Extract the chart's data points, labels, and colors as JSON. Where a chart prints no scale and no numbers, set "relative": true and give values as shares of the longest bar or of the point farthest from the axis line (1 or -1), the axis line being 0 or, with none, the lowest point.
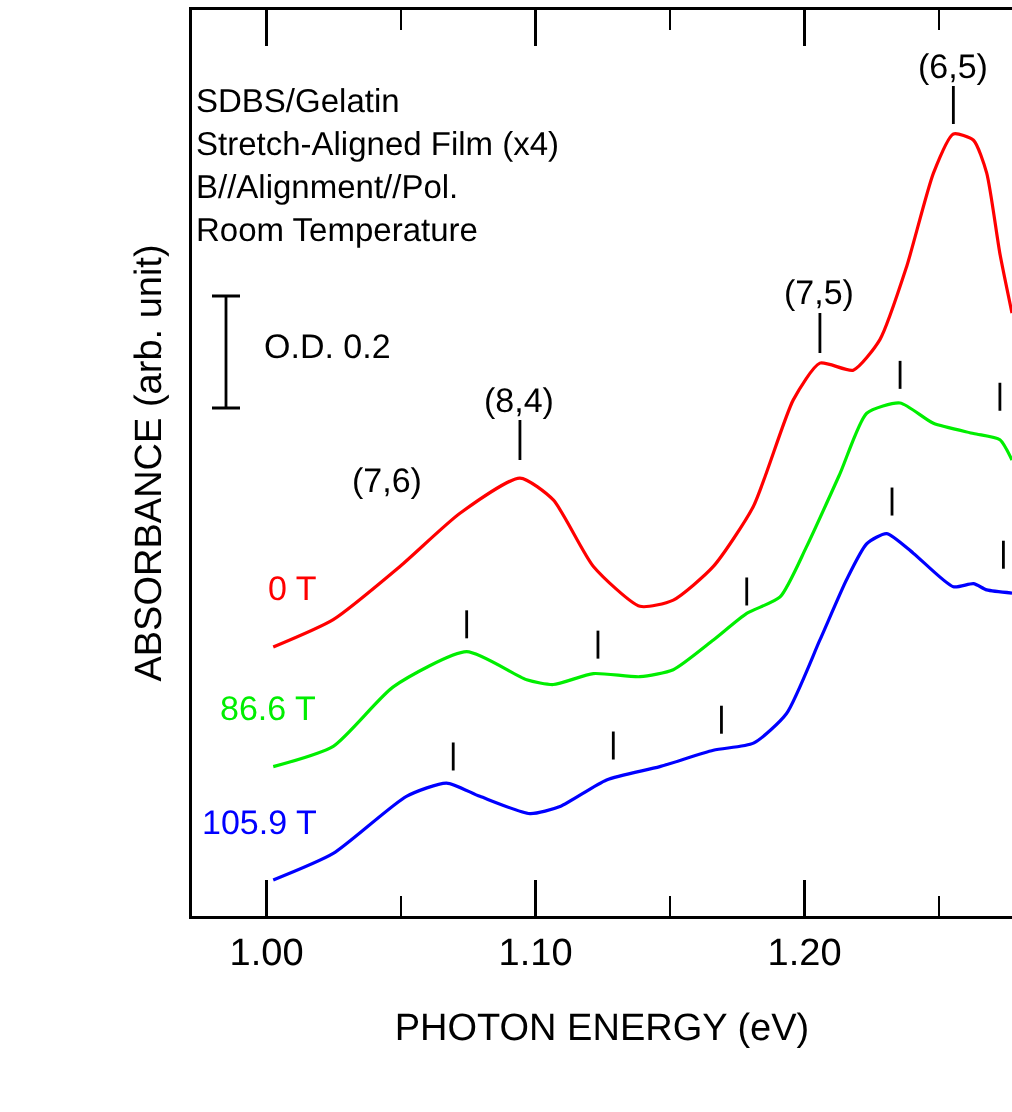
{
  "chart_data": {
    "type": "line",
    "relative": true,
    "xlabel": "PHOTON ENERGY (eV)",
    "ylabel": "ABSORBANCE (arb. unit)",
    "xlim": [
      0.9723,
      1.2771
    ],
    "xticks": [
      {
        "value": 1.0,
        "label": "1.00"
      },
      {
        "value": 1.05,
        "label": null
      },
      {
        "value": 1.1,
        "label": "1.10"
      },
      {
        "value": 1.15,
        "label": null
      },
      {
        "value": 1.2,
        "label": "1.20"
      },
      {
        "value": 1.25,
        "label": null
      }
    ],
    "grid": false,
    "legend": false,
    "series": [
      {
        "name": "0 T",
        "color": "#ff0000",
        "x": [
          1.0025,
          1.0248,
          1.0496,
          1.0719,
          1.0942,
          1.1066,
          1.1215,
          1.1388,
          1.1512,
          1.1661,
          1.181,
          1.1958,
          1.2057,
          1.2181,
          1.228,
          1.2379,
          1.2479,
          1.2553,
          1.2628,
          1.2677,
          1.2726,
          1.2771
        ],
        "values": [
          0.344,
          0.379,
          0.447,
          0.515,
          0.56,
          0.532,
          0.447,
          0.396,
          0.404,
          0.447,
          0.524,
          0.66,
          0.707,
          0.698,
          0.737,
          0.83,
          0.95,
          1.0,
          0.992,
          0.95,
          0.847,
          0.771
        ]
      },
      {
        "name": "86.6 T",
        "color": "#00ee00",
        "x": [
          1.0025,
          1.0248,
          1.0471,
          1.0744,
          1.0967,
          1.1066,
          1.1215,
          1.1388,
          1.1512,
          1.1661,
          1.1785,
          1.1909,
          1.2007,
          1.2132,
          1.2231,
          1.2355,
          1.2479,
          1.2628,
          1.2726,
          1.2771
        ],
        "values": [
          0.191,
          0.217,
          0.293,
          0.338,
          0.302,
          0.296,
          0.31,
          0.306,
          0.315,
          0.353,
          0.387,
          0.408,
          0.472,
          0.566,
          0.643,
          0.656,
          0.63,
          0.617,
          0.609,
          0.583
        ]
      },
      {
        "name": "105.9 T",
        "color": "#0000ff",
        "x": [
          1.0025,
          1.0248,
          1.052,
          1.0669,
          1.0793,
          1.0979,
          1.1091,
          1.1264,
          1.1462,
          1.1661,
          1.181,
          1.1933,
          1.2057,
          1.2156,
          1.2231,
          1.2305,
          1.2404,
          1.2553,
          1.2628,
          1.2677,
          1.2771
        ],
        "values": [
          0.046,
          0.08,
          0.153,
          0.17,
          0.153,
          0.131,
          0.14,
          0.174,
          0.191,
          0.212,
          0.221,
          0.259,
          0.353,
          0.43,
          0.476,
          0.489,
          0.464,
          0.421,
          0.425,
          0.417,
          0.413
        ]
      }
    ],
    "annotations": [
      "SDBS/Gelatin\nStretch-Aligned Film (x4)\nB//Alignment//Pol.\nRoom Temperature",
      "O.D. 0.2",
      "(7,6)",
      {
        "text": "(8,4)",
        "x": 1.0942,
        "y": 0.56
      },
      {
        "text": "(7,5)",
        "x": 1.2057,
        "y": 0.707
      },
      {
        "text": "(6,5)",
        "x": 1.2553,
        "y": 1.0
      }
    ]
  }
}
